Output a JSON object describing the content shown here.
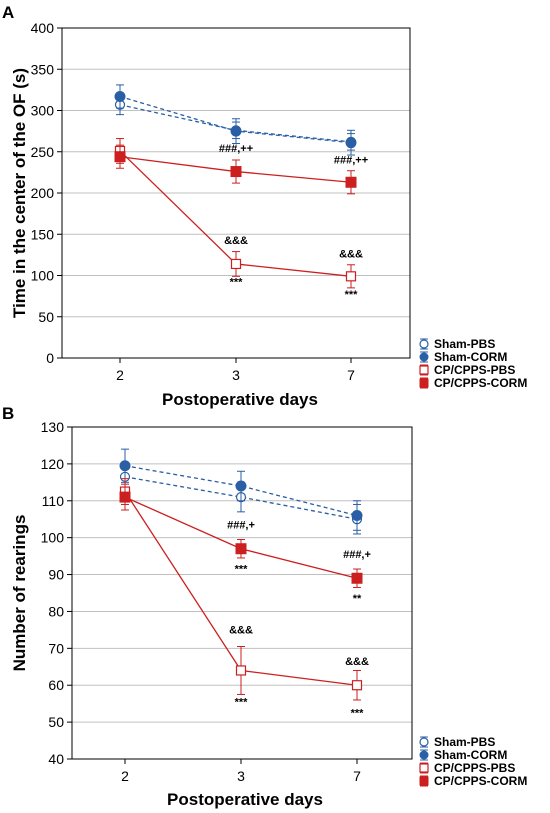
{
  "colors": {
    "sham": "#2a5fa5",
    "cp": "#cc1f1f",
    "grid": "#c0c0c0"
  },
  "chart_data": [
    {
      "panel": "A",
      "type": "line",
      "categories": [
        "2",
        "3",
        "7"
      ],
      "xlabel": "Postoperative days",
      "ylabel": "Time in the center of the OF (s)",
      "ylim": [
        0,
        400
      ],
      "yticks": [
        0,
        50,
        100,
        150,
        200,
        250,
        300,
        350,
        400
      ],
      "grid": true,
      "legend_placement": "bottom-right, outside plot",
      "series": [
        {
          "name": "Sham-PBS",
          "color": "#2a5fa5",
          "style": "dashed",
          "marker": "open-circle",
          "values": [
            307,
            276,
            262
          ],
          "errors": [
            12,
            10,
            10
          ]
        },
        {
          "name": "Sham-CORM",
          "color": "#2a5fa5",
          "style": "dashed",
          "marker": "filled-circle",
          "values": [
            317,
            275,
            261
          ],
          "errors": [
            14,
            15,
            15
          ]
        },
        {
          "name": "CP/CPPS-PBS",
          "color": "#cc1f1f",
          "style": "solid",
          "marker": "open-square",
          "values": [
            251,
            114,
            99
          ],
          "errors": [
            15,
            15,
            14
          ]
        },
        {
          "name": "CP/CPPS-CORM",
          "color": "#cc1f1f",
          "style": "solid",
          "marker": "filled-square",
          "values": [
            244,
            226,
            213
          ],
          "errors": [
            14,
            14,
            14
          ]
        }
      ],
      "annotations": [
        {
          "text": "###,++",
          "cat": 1,
          "y": 250
        },
        {
          "text": "###,++",
          "cat": 2,
          "y": 236
        },
        {
          "text": "&&&",
          "cat": 1,
          "y": 138
        },
        {
          "text": "***",
          "cat": 1,
          "y": 88
        },
        {
          "text": "&&&",
          "cat": 2,
          "y": 122
        },
        {
          "text": "***",
          "cat": 2,
          "y": 73
        }
      ]
    },
    {
      "panel": "B",
      "type": "line",
      "categories": [
        "2",
        "3",
        "7"
      ],
      "xlabel": "Postoperative days",
      "ylabel": "Number of rearings",
      "ylim": [
        40,
        130
      ],
      "yticks": [
        40,
        50,
        60,
        70,
        80,
        90,
        100,
        110,
        120,
        130
      ],
      "grid": true,
      "legend_placement": "bottom-right, outside plot",
      "series": [
        {
          "name": "Sham-PBS",
          "color": "#2a5fa5",
          "style": "dashed",
          "marker": "open-circle",
          "values": [
            116.5,
            111,
            105
          ],
          "errors": [
            3,
            4,
            4
          ]
        },
        {
          "name": "Sham-CORM",
          "color": "#2a5fa5",
          "style": "dashed",
          "marker": "filled-circle",
          "values": [
            119.5,
            114,
            106
          ],
          "errors": [
            4.5,
            4,
            4
          ]
        },
        {
          "name": "CP/CPPS-PBS",
          "color": "#cc1f1f",
          "style": "solid",
          "marker": "open-square",
          "values": [
            112.5,
            64,
            60
          ],
          "errors": [
            3.5,
            6.5,
            4
          ]
        },
        {
          "name": "CP/CPPS-CORM",
          "color": "#cc1f1f",
          "style": "solid",
          "marker": "filled-square",
          "values": [
            111,
            97,
            89
          ],
          "errors": [
            3.5,
            2.5,
            2.5
          ]
        }
      ],
      "annotations": [
        {
          "text": "###,+",
          "cat": 1,
          "y": 102.5
        },
        {
          "text": "***",
          "cat": 1,
          "y": 90.5
        },
        {
          "text": "###,+",
          "cat": 2,
          "y": 94.5
        },
        {
          "text": "**",
          "cat": 2,
          "y": 82.5
        },
        {
          "text": "&&&",
          "cat": 1,
          "y": 74
        },
        {
          "text": "***",
          "cat": 1,
          "y": 54.5
        },
        {
          "text": "&&&",
          "cat": 2,
          "y": 65.5
        },
        {
          "text": "***",
          "cat": 2,
          "y": 51.5
        }
      ]
    }
  ]
}
